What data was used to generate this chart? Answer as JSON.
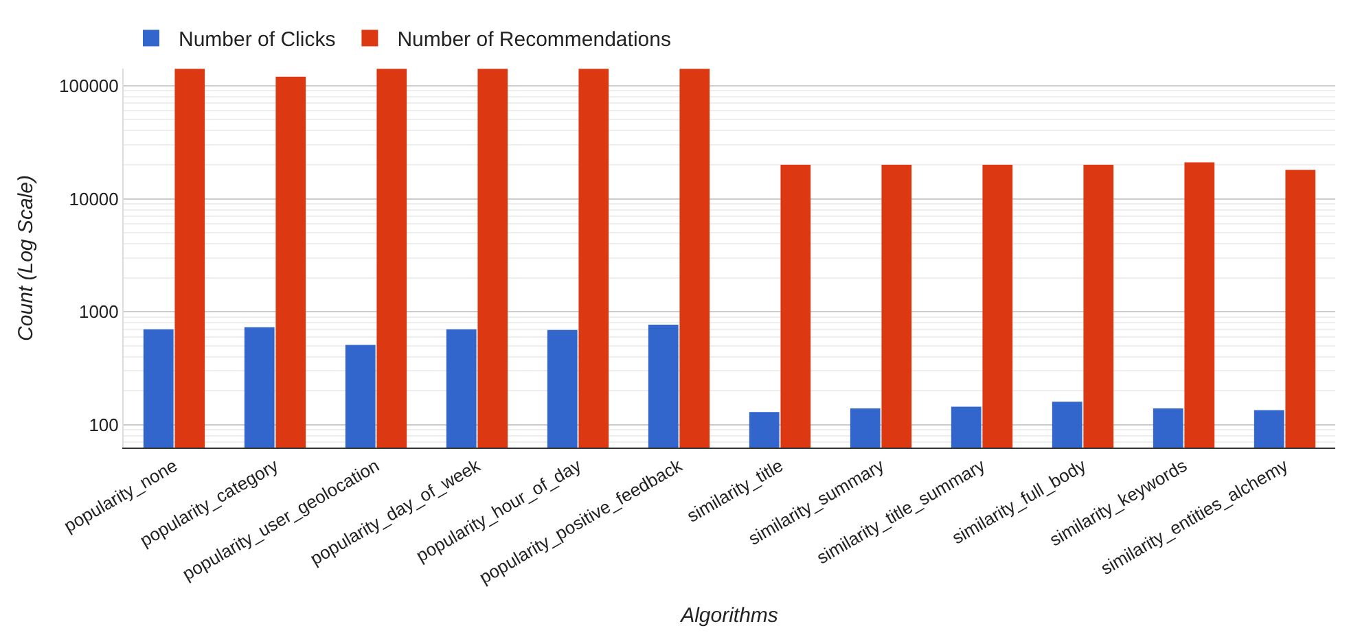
{
  "chart_data": {
    "type": "bar",
    "xlabel": "Algorithms",
    "ylabel": "Count (Log Scale)",
    "categories": [
      "popularity_none",
      "popularity_category",
      "popularity_user_geolocation",
      "popularity_day_of_week",
      "popularity_hour_of_day",
      "popularity_positive_feedback",
      "similarity_title",
      "similarity_summary",
      "similarity_title_summary",
      "similarity_full_body",
      "similarity_keywords",
      "similarity_entities_alchemy"
    ],
    "series": [
      {
        "name": "Number of Clicks",
        "color": "#3366cc",
        "values": [
          700,
          730,
          510,
          700,
          690,
          770,
          130,
          140,
          145,
          160,
          140,
          135
        ]
      },
      {
        "name": "Number of Recommendations",
        "color": "#dc3912",
        "values": [
          141000,
          120000,
          141000,
          141000,
          141000,
          141000,
          20000,
          20000,
          20000,
          20000,
          21000,
          18000
        ]
      }
    ],
    "log": true,
    "ylim": [
      63,
      141600
    ],
    "yticks": [
      100,
      1000,
      10000,
      100000
    ],
    "grid": "y",
    "legend": "top left"
  }
}
